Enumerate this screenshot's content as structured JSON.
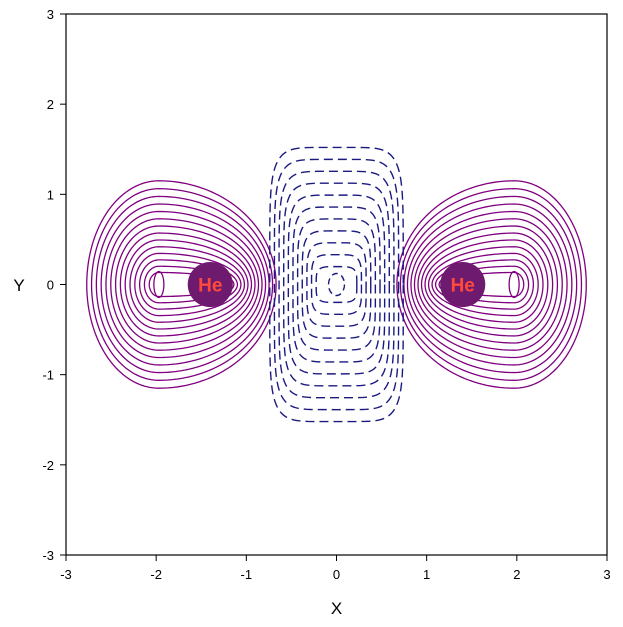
{
  "chart_data": {
    "type": "contour",
    "title": "",
    "xlabel": "X",
    "ylabel": "Y",
    "xlim": [
      -3,
      3
    ],
    "ylim": [
      -3,
      3
    ],
    "xticks": [
      -3,
      -2,
      -1,
      0,
      1,
      2,
      3
    ],
    "yticks": [
      -3,
      -2,
      -1,
      0,
      1,
      2,
      3
    ],
    "grid": false,
    "colors": {
      "positive_contours": "#800080",
      "negative_contours": "#1a1a80",
      "atom_fill": "#6e1a6e",
      "atom_label": "#ff4a3a",
      "axis": "#000000"
    },
    "atoms": [
      {
        "label": "He",
        "x": -1.4,
        "y": 0.0,
        "radius": 0.25
      },
      {
        "label": "He",
        "x": 1.4,
        "y": 0.0,
        "radius": 0.25
      }
    ],
    "contour_regions": [
      {
        "sign": "positive",
        "center_x": -1.97,
        "center_y": 0.0,
        "levels": 14,
        "extent_x": [
          -2.77,
          -0.67
        ],
        "extent_y": [
          -1.15,
          1.15
        ],
        "line_style": "solid"
      },
      {
        "sign": "positive",
        "center_x": 1.97,
        "center_y": 0.0,
        "levels": 14,
        "extent_x": [
          0.67,
          2.77
        ],
        "extent_y": [
          -1.15,
          1.15
        ],
        "line_style": "solid"
      },
      {
        "sign": "negative",
        "center_x": 0.0,
        "center_y": 0.0,
        "levels": 11,
        "extent_x": [
          -0.74,
          0.74
        ],
        "extent_y": [
          -1.52,
          1.52
        ],
        "line_style": "dashed"
      }
    ]
  }
}
